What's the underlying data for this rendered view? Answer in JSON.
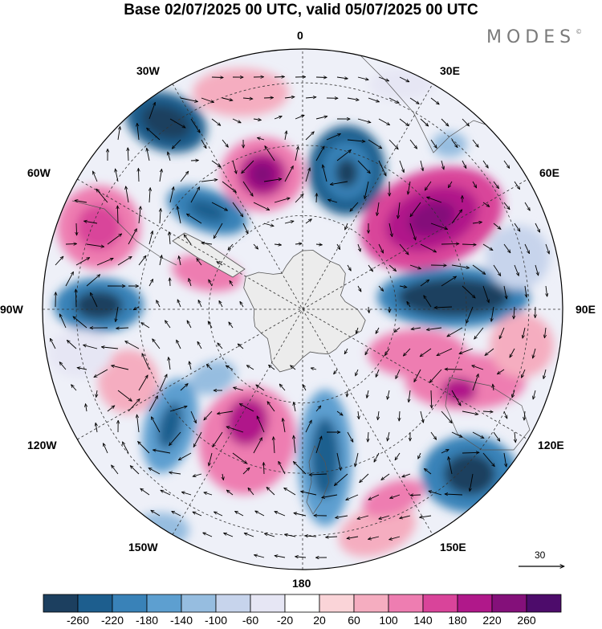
{
  "title": "Base 02/07/2025 00 UTC, valid 05/07/2025 00 UTC",
  "brand": {
    "name": "MODES",
    "mark": "©"
  },
  "longitude_labels": {
    "lon_0": "0",
    "lon_30e": "30E",
    "lon_60e": "60E",
    "lon_90e": "90E",
    "lon_120e": "120E",
    "lon_150e": "150E",
    "lon_180": "180",
    "lon_150w": "150W",
    "lon_120w": "120W",
    "lon_90w": "90W",
    "lon_60w": "60W",
    "lon_30w": "30W"
  },
  "vector_reference": {
    "label": "30"
  },
  "colorbar": {
    "ticks": [
      "-260",
      "-220",
      "-180",
      "-140",
      "-100",
      "-60",
      "-20",
      "20",
      "60",
      "100",
      "140",
      "180",
      "220",
      "260"
    ],
    "colors": [
      "#1c3f5f",
      "#1d5e8e",
      "#3982b8",
      "#5d9fd0",
      "#96bde0",
      "#c7d4ec",
      "#e6e6f4",
      "#ffffff",
      "#fad4d8",
      "#f5adc0",
      "#ee7db1",
      "#d9449a",
      "#b0188a",
      "#84107a",
      "#4d0c6b"
    ]
  },
  "map": {
    "projection": "south-polar-stereographic",
    "colors": {
      "ocean_land_mask": "#ececec",
      "coast": "#555555",
      "grid": "#333333"
    }
  }
}
